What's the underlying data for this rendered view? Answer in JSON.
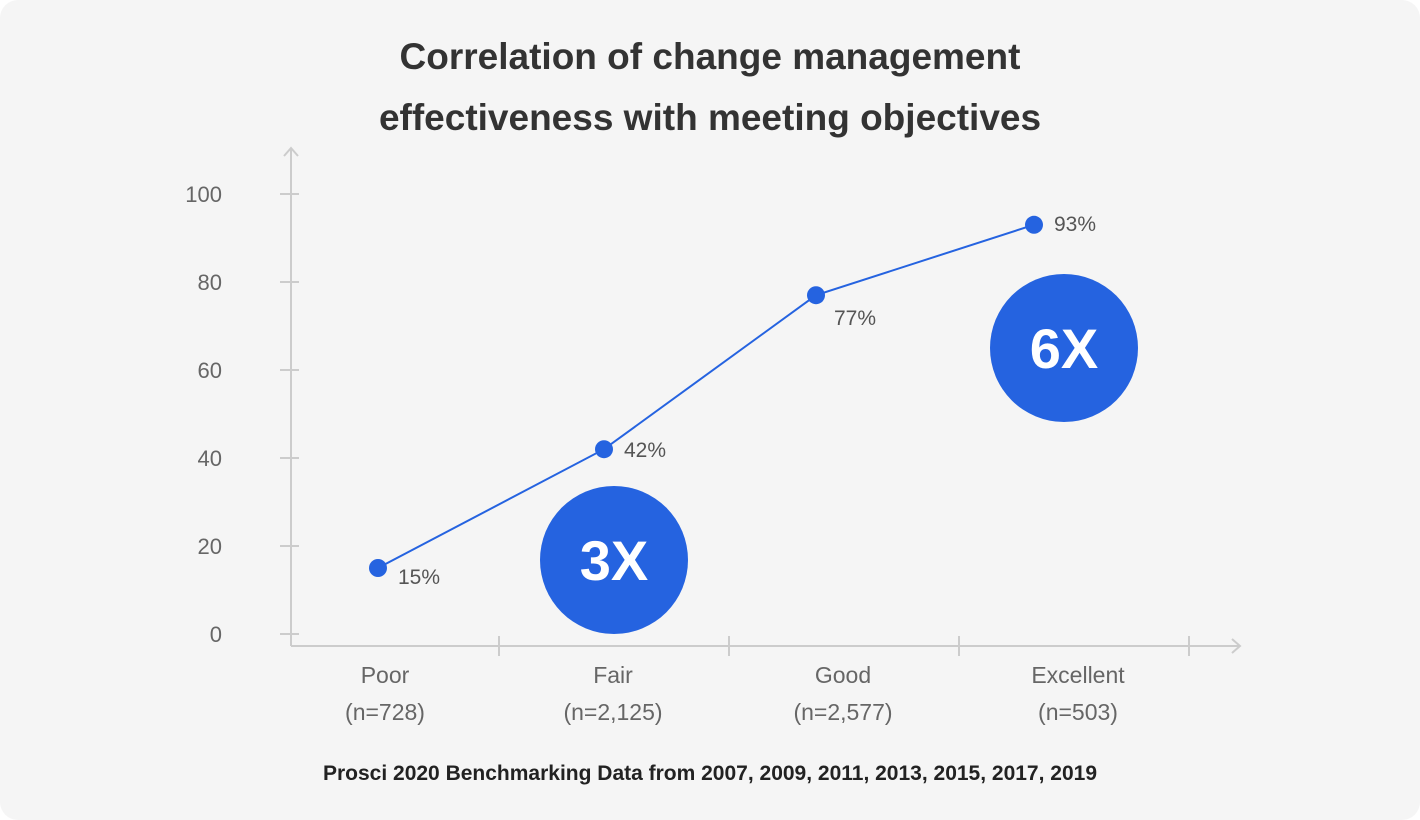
{
  "chart_data": {
    "type": "line",
    "title_lines": [
      "Correlation of change management",
      "effectiveness with meeting objectives"
    ],
    "categories": [
      "Poor",
      "Fair",
      "Good",
      "Excellent"
    ],
    "category_counts": [
      "(n=728)",
      "(n=2,125)",
      "(n=2,577)",
      "(n=503)"
    ],
    "values": [
      15,
      42,
      77,
      93
    ],
    "data_labels": [
      "15%",
      "42%",
      "77%",
      "93%"
    ],
    "ylim": [
      0,
      100
    ],
    "yticks": [
      0,
      20,
      40,
      60,
      80,
      100
    ],
    "grid": false,
    "annotations": [
      {
        "text": "3X",
        "near": "Fair"
      },
      {
        "text": "6X",
        "near": "Excellent"
      }
    ],
    "source": "Prosci 2020 Benchmarking Data from 2007, 2009, 2011, 2013, 2015, 2017, 2019",
    "colors": {
      "line": "#2563e0",
      "badge": "#2563e0",
      "axis": "#cccccc"
    }
  }
}
